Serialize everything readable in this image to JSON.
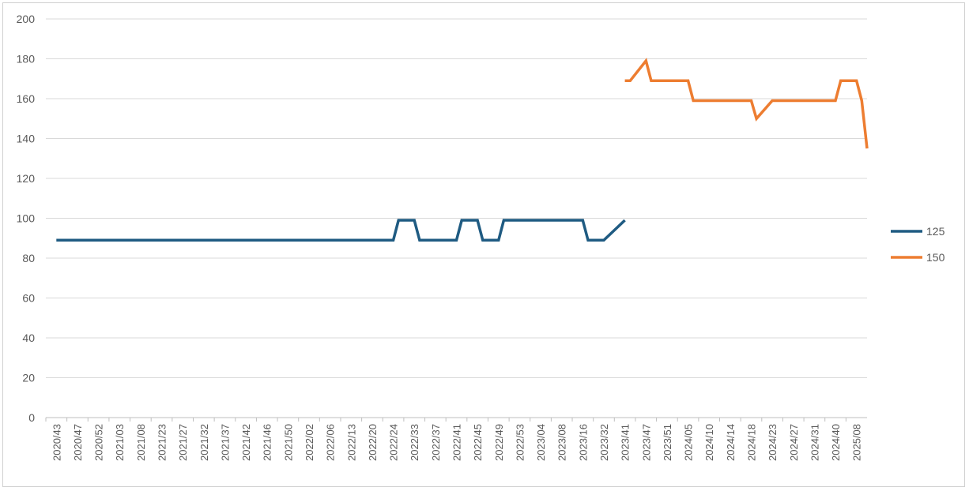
{
  "chart_data": {
    "type": "line",
    "title": "",
    "xlabel": "",
    "ylabel": "",
    "ylim": [
      0,
      200
    ],
    "yticks": [
      0,
      20,
      40,
      60,
      80,
      100,
      120,
      140,
      160,
      180,
      200
    ],
    "grid": true,
    "legend": "right",
    "x_tick_labels": [
      "2020/43",
      "2020/47",
      "2020/52",
      "2021/03",
      "2021/08",
      "2021/23",
      "2021/27",
      "2021/32",
      "2021/37",
      "2021/42",
      "2021/46",
      "2021/50",
      "2022/02",
      "2022/06",
      "2022/13",
      "2022/20",
      "2022/24",
      "2022/33",
      "2022/37",
      "2022/41",
      "2022/45",
      "2022/49",
      "2022/53",
      "2023/04",
      "2023/08",
      "2023/16",
      "2023/32",
      "2023/41",
      "2023/47",
      "2023/51",
      "2024/05",
      "2024/10",
      "2024/14",
      "2024/18",
      "2024/23",
      "2024/27",
      "2024/31",
      "2024/40",
      "2025/08"
    ],
    "series": [
      {
        "name": "125",
        "color": "#1f5b82",
        "points": [
          [
            "2020/43",
            89
          ],
          [
            "2022/24",
            89
          ],
          [
            "2022/24",
            99
          ],
          [
            "2022/33",
            99
          ],
          [
            "2022/33",
            89
          ],
          [
            "2022/41",
            89
          ],
          [
            "2022/41",
            99
          ],
          [
            "2022/45",
            99
          ],
          [
            "2022/45",
            89
          ],
          [
            "2022/49",
            89
          ],
          [
            "2022/49",
            99
          ],
          [
            "2023/16",
            99
          ],
          [
            "2023/16",
            89
          ],
          [
            "2023/32",
            89
          ],
          [
            "2023/41",
            99
          ]
        ]
      },
      {
        "name": "150",
        "color": "#ed7d31",
        "points": [
          [
            "2023/41",
            169
          ],
          [
            "2023/41",
            169
          ],
          [
            "2023/47",
            179
          ],
          [
            "2023/47",
            169
          ],
          [
            "2023/51",
            169
          ],
          [
            "2024/05",
            169
          ],
          [
            "2024/05",
            159
          ],
          [
            "2024/18",
            159
          ],
          [
            "2024/18",
            150
          ],
          [
            "2024/23",
            159
          ],
          [
            "2024/40",
            159
          ],
          [
            "2024/40",
            169
          ],
          [
            "2025/08",
            169
          ],
          [
            "2025/08",
            159
          ],
          [
            "2025/08",
            135
          ]
        ]
      }
    ]
  }
}
